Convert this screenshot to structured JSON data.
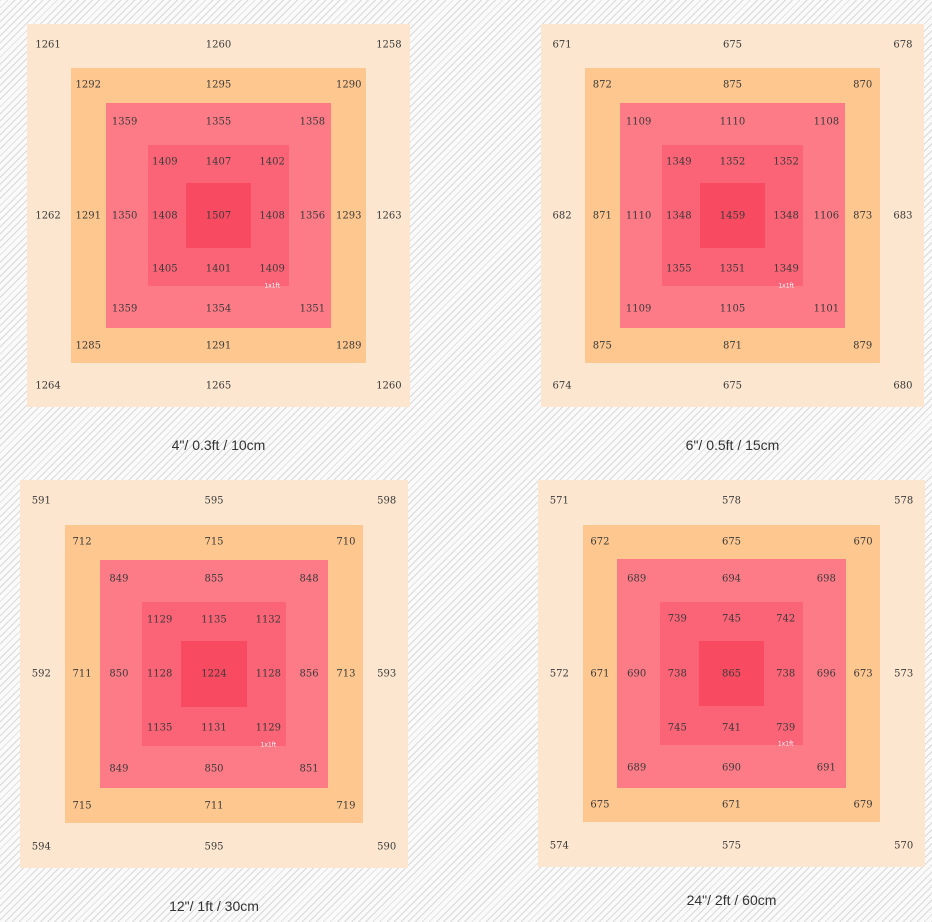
{
  "chart_data": [
    {
      "type": "heatmap",
      "caption": "4\"/ 0.3ft / 10cm",
      "area_label": "1x1ft",
      "rings": [
        {
          "top": [
            "1261",
            "1260",
            "1258"
          ],
          "side": [
            "1262",
            "1263"
          ],
          "bottom": [
            "1264",
            "1265",
            "1260"
          ]
        },
        {
          "top": [
            "1292",
            "1295",
            "1290"
          ],
          "side": [
            "1291",
            "1293"
          ],
          "bottom": [
            "1285",
            "1291",
            "1289"
          ]
        },
        {
          "top": [
            "1359",
            "1355",
            "1358"
          ],
          "side": [
            "1350",
            "1356"
          ],
          "bottom": [
            "1359",
            "1354",
            "1351"
          ]
        },
        {
          "top": [
            "1409",
            "1407",
            "1402"
          ],
          "side": [
            "1408",
            "1408"
          ],
          "bottom": [
            "1405",
            "1401",
            "1409"
          ]
        }
      ],
      "center": "1507"
    },
    {
      "type": "heatmap",
      "caption": "6\"/ 0.5ft / 15cm",
      "area_label": "1x1ft",
      "rings": [
        {
          "top": [
            "671",
            "675",
            "678"
          ],
          "side": [
            "682",
            "683"
          ],
          "bottom": [
            "674",
            "675",
            "680"
          ]
        },
        {
          "top": [
            "872",
            "875",
            "870"
          ],
          "side": [
            "871",
            "873"
          ],
          "bottom": [
            "875",
            "871",
            "879"
          ]
        },
        {
          "top": [
            "1109",
            "1110",
            "1108"
          ],
          "side": [
            "1110",
            "1106"
          ],
          "bottom": [
            "1109",
            "1105",
            "1101"
          ]
        },
        {
          "top": [
            "1349",
            "1352",
            "1352"
          ],
          "side": [
            "1348",
            "1348"
          ],
          "bottom": [
            "1355",
            "1351",
            "1349"
          ]
        }
      ],
      "center": "1459"
    },
    {
      "type": "heatmap",
      "caption": "12\"/ 1ft / 30cm",
      "area_label": "1x1ft",
      "rings": [
        {
          "top": [
            "591",
            "595",
            "598"
          ],
          "side": [
            "592",
            "593"
          ],
          "bottom": [
            "594",
            "595",
            "590"
          ]
        },
        {
          "top": [
            "712",
            "715",
            "710"
          ],
          "side": [
            "711",
            "713"
          ],
          "bottom": [
            "715",
            "711",
            "719"
          ]
        },
        {
          "top": [
            "849",
            "855",
            "848"
          ],
          "side": [
            "850",
            "856"
          ],
          "bottom": [
            "849",
            "850",
            "851"
          ]
        },
        {
          "top": [
            "1129",
            "1135",
            "1132"
          ],
          "side": [
            "1128",
            "1128"
          ],
          "bottom": [
            "1135",
            "1131",
            "1129"
          ]
        }
      ],
      "center": "1224"
    },
    {
      "type": "heatmap",
      "caption": "24\"/ 2ft / 60cm",
      "area_label": "1x1ft",
      "rings": [
        {
          "top": [
            "571",
            "578",
            "578"
          ],
          "side": [
            "572",
            "573"
          ],
          "bottom": [
            "574",
            "575",
            "570"
          ]
        },
        {
          "top": [
            "672",
            "675",
            "670"
          ],
          "side": [
            "671",
            "673"
          ],
          "bottom": [
            "675",
            "671",
            "679"
          ]
        },
        {
          "top": [
            "689",
            "694",
            "698"
          ],
          "side": [
            "690",
            "696"
          ],
          "bottom": [
            "689",
            "690",
            "691"
          ]
        },
        {
          "top": [
            "739",
            "745",
            "742"
          ],
          "side": [
            "738",
            "738"
          ],
          "bottom": [
            "745",
            "741",
            "739"
          ]
        }
      ],
      "center": "865"
    }
  ],
  "colors": {
    "ring_1": "#fce6cf",
    "ring_2": "#fdc78f",
    "ring_3": "#fd7b87",
    "ring_4": "#fb6376",
    "center": "#f84a60"
  }
}
